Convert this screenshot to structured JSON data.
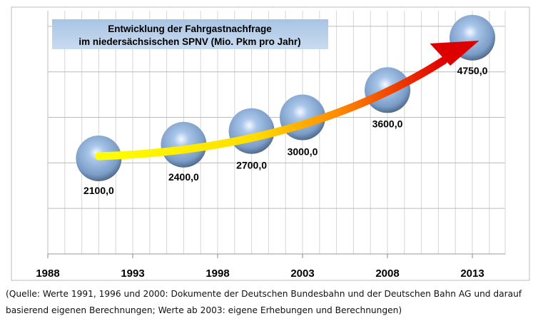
{
  "chart_data": {
    "type": "scatter",
    "title": [
      "Entwicklung der Fahrgastnachfrage",
      "im niedersächsischen SPNV (Mio. Pkm pro Jahr)"
    ],
    "xlabel": "",
    "ylabel": "",
    "xlim": [
      1988,
      2014.9
    ],
    "ylim": [
      0,
      5500
    ],
    "x_ticks": [
      "1988",
      "1993",
      "1998",
      "2003",
      "2008",
      "2013"
    ],
    "y_gridlines": [
      1000,
      2000,
      3000,
      4000,
      5000
    ],
    "y_tick_labels_shown": false,
    "grid": true,
    "marker": "3D sphere",
    "marker_color": "#8fb0d8",
    "trend_arrow_colors": [
      "#ffff00",
      "#ff9900",
      "#ee0000"
    ],
    "points": [
      {
        "x": 1991,
        "y": 2100,
        "label": "2100,0"
      },
      {
        "x": 1996,
        "y": 2400,
        "label": "2400,0"
      },
      {
        "x": 2000,
        "y": 2700,
        "label": "2700,0"
      },
      {
        "x": 2003,
        "y": 3000,
        "label": "3000,0"
      },
      {
        "x": 2008,
        "y": 3600,
        "label": "3600,0"
      },
      {
        "x": 2013,
        "y": 4750,
        "label": "4750,0"
      }
    ]
  },
  "caption": {
    "line1": "(Quelle: Werte 1991, 1996 und 2000: Dokumente der Deutschen Bundesbahn und der Deutschen Bahn AG und darauf",
    "line2": "basierend eigenen Berechnungen; Werte ab 2003: eigene Erhebungen und Berechnungen)"
  }
}
